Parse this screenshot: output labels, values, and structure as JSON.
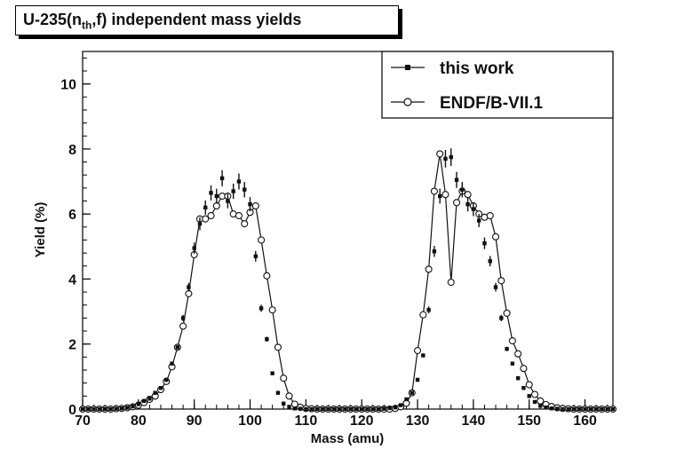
{
  "title": {
    "prefix": "U-235(n",
    "sub": "th",
    "suffix": ",f) independent mass yields"
  },
  "colors": {
    "axes": "#000000",
    "series": "#111111",
    "background": "#ffffff"
  },
  "chart_data": {
    "type": "scatter",
    "title": "U-235(nth,f) independent mass yields",
    "xlabel": "Mass (amu)",
    "ylabel": "Yield (%)",
    "xlim": [
      70,
      165
    ],
    "ylim": [
      0,
      11
    ],
    "xticks": [
      70,
      80,
      90,
      100,
      110,
      120,
      130,
      140,
      150,
      160
    ],
    "yticks": [
      0,
      2,
      4,
      6,
      8,
      10
    ],
    "grid": false,
    "legend_position": "top-right",
    "series": [
      {
        "name": "this work",
        "marker": "filled-square-with-error-bars",
        "line": false,
        "x": [
          66,
          67,
          68,
          69,
          70,
          71,
          72,
          73,
          74,
          75,
          76,
          77,
          78,
          79,
          80,
          81,
          82,
          83,
          84,
          85,
          86,
          87,
          88,
          89,
          90,
          91,
          92,
          93,
          94,
          95,
          96,
          97,
          98,
          99,
          100,
          101,
          102,
          103,
          104,
          105,
          106,
          107,
          108,
          109,
          110,
          111,
          112,
          113,
          114,
          115,
          116,
          117,
          118,
          119,
          120,
          121,
          122,
          123,
          124,
          125,
          126,
          127,
          128,
          129,
          130,
          131,
          132,
          133,
          134,
          135,
          136,
          137,
          138,
          139,
          140,
          141,
          142,
          143,
          144,
          145,
          146,
          147,
          148,
          149,
          150,
          151,
          152,
          153,
          154,
          155,
          156,
          157,
          158,
          159,
          160,
          161,
          162,
          163,
          164,
          165
        ],
        "y": [
          0,
          0,
          0,
          0,
          0,
          0,
          0,
          0,
          0,
          0,
          0.01,
          0.02,
          0.04,
          0.08,
          0.15,
          0.25,
          0.32,
          0.5,
          0.65,
          0.9,
          1.4,
          1.9,
          2.8,
          3.75,
          4.95,
          5.7,
          6.2,
          6.65,
          6.55,
          7.1,
          6.4,
          6.7,
          7.0,
          6.75,
          6.3,
          4.7,
          3.1,
          2.15,
          1.1,
          0.5,
          0.17,
          0.07,
          0.02,
          0.01,
          0,
          0,
          0,
          0,
          0,
          0,
          0,
          0,
          0,
          0,
          0,
          0,
          0,
          0,
          0.01,
          0.03,
          0.05,
          0.12,
          0.3,
          0.5,
          0.9,
          1.65,
          3.05,
          4.85,
          6.55,
          7.7,
          7.75,
          7.05,
          6.75,
          6.3,
          6.15,
          5.8,
          5.1,
          4.55,
          3.75,
          2.8,
          1.85,
          1.4,
          0.95,
          0.65,
          0.4,
          0.22,
          0.1,
          0.05,
          0.02,
          0.01,
          0,
          0,
          0,
          0,
          0,
          0,
          0,
          0,
          0,
          0
        ]
      },
      {
        "name": "ENDF/B-VII.1",
        "marker": "open-circle",
        "line": true,
        "x": [
          66,
          67,
          68,
          69,
          70,
          71,
          72,
          73,
          74,
          75,
          76,
          77,
          78,
          79,
          80,
          81,
          82,
          83,
          84,
          85,
          86,
          87,
          88,
          89,
          90,
          91,
          92,
          93,
          94,
          95,
          96,
          97,
          98,
          99,
          100,
          101,
          102,
          103,
          104,
          105,
          106,
          107,
          108,
          109,
          110,
          111,
          112,
          113,
          114,
          115,
          116,
          117,
          118,
          119,
          120,
          121,
          122,
          123,
          124,
          125,
          126,
          127,
          128,
          129,
          130,
          131,
          132,
          133,
          134,
          135,
          136,
          137,
          138,
          139,
          140,
          141,
          142,
          143,
          144,
          145,
          146,
          147,
          148,
          149,
          150,
          151,
          152,
          153,
          154,
          155,
          156,
          157,
          158,
          159,
          160,
          161,
          162,
          163,
          164,
          165
        ],
        "y": [
          0,
          0,
          0,
          0,
          0,
          0,
          0,
          0,
          0,
          0,
          0.01,
          0.02,
          0.04,
          0.07,
          0.12,
          0.2,
          0.3,
          0.4,
          0.6,
          0.85,
          1.3,
          1.9,
          2.55,
          3.55,
          4.75,
          5.85,
          5.85,
          5.95,
          6.25,
          6.55,
          6.55,
          6.0,
          5.95,
          5.7,
          6.05,
          6.25,
          5.2,
          4.1,
          3.05,
          1.9,
          0.95,
          0.4,
          0.15,
          0.06,
          0.02,
          0.01,
          0,
          0,
          0,
          0,
          0,
          0,
          0,
          0,
          0,
          0,
          0,
          0,
          0,
          0,
          0.02,
          0.07,
          0.18,
          0.5,
          1.8,
          2.9,
          4.3,
          6.7,
          7.85,
          6.6,
          3.9,
          6.35,
          6.7,
          6.6,
          6.25,
          6.0,
          5.9,
          5.95,
          5.3,
          3.95,
          2.95,
          2.1,
          1.7,
          1.25,
          0.75,
          0.45,
          0.25,
          0.14,
          0.08,
          0.04,
          0.02,
          0.01,
          0,
          0,
          0,
          0,
          0,
          0,
          0,
          0
        ]
      }
    ]
  }
}
